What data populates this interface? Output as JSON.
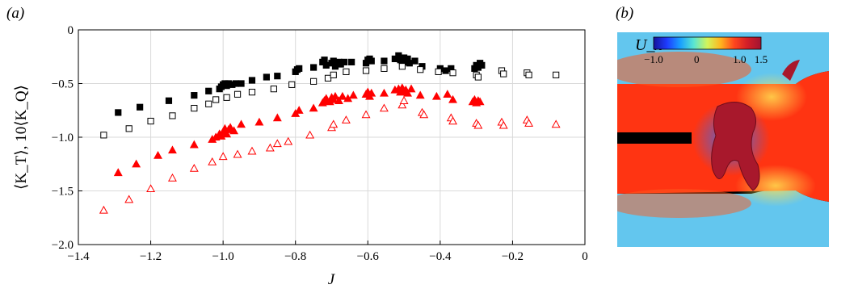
{
  "panels": {
    "a": "(a)",
    "b": "(b)"
  },
  "chart_data": {
    "type": "scatter",
    "xlabel": "J",
    "ylabel": "⟨K_T⟩, 10⟨K_Q⟩",
    "xlim": [
      -1.4,
      0
    ],
    "ylim": [
      -2.0,
      0
    ],
    "xticks": [
      -1.4,
      -1.2,
      -1.0,
      -0.8,
      -0.6,
      -0.4,
      -0.2,
      0
    ],
    "yticks": [
      0,
      -0.5,
      -1.0,
      -1.5,
      -2.0
    ],
    "xtick_labels": [
      "−1.4",
      "−1.2",
      "−1.0",
      "−0.8",
      "−0.6",
      "−0.4",
      "−0.2",
      "0"
    ],
    "ytick_labels": [
      "0",
      "−0.5",
      "−1.0",
      "−1.5",
      "−2.0"
    ],
    "grid": true,
    "series": [
      {
        "marker": "square-filled",
        "color": "#000000",
        "points": [
          [
            -1.29,
            -0.77
          ],
          [
            -1.23,
            -0.72
          ],
          [
            -1.15,
            -0.66
          ],
          [
            -1.08,
            -0.61
          ],
          [
            -1.04,
            -0.57
          ],
          [
            -1.01,
            -0.55
          ],
          [
            -1.005,
            -0.53
          ],
          [
            -1.0,
            -0.51
          ],
          [
            -0.995,
            -0.5
          ],
          [
            -0.99,
            -0.52
          ],
          [
            -0.985,
            -0.5
          ],
          [
            -0.975,
            -0.51
          ],
          [
            -0.965,
            -0.5
          ],
          [
            -0.95,
            -0.5
          ],
          [
            -0.92,
            -0.47
          ],
          [
            -0.88,
            -0.44
          ],
          [
            -0.85,
            -0.43
          ],
          [
            -0.8,
            -0.39
          ],
          [
            -0.795,
            -0.37
          ],
          [
            -0.79,
            -0.36
          ],
          [
            -0.75,
            -0.35
          ],
          [
            -0.725,
            -0.3
          ],
          [
            -0.72,
            -0.28
          ],
          [
            -0.715,
            -0.33
          ],
          [
            -0.7,
            -0.31
          ],
          [
            -0.695,
            -0.29
          ],
          [
            -0.69,
            -0.34
          ],
          [
            -0.68,
            -0.3
          ],
          [
            -0.675,
            -0.32
          ],
          [
            -0.665,
            -0.3
          ],
          [
            -0.645,
            -0.3
          ],
          [
            -0.605,
            -0.31
          ],
          [
            -0.6,
            -0.28
          ],
          [
            -0.595,
            -0.27
          ],
          [
            -0.59,
            -0.29
          ],
          [
            -0.555,
            -0.29
          ],
          [
            -0.525,
            -0.27
          ],
          [
            -0.515,
            -0.24
          ],
          [
            -0.51,
            -0.28
          ],
          [
            -0.505,
            -0.29
          ],
          [
            -0.5,
            -0.26
          ],
          [
            -0.495,
            -0.3
          ],
          [
            -0.49,
            -0.27
          ],
          [
            -0.485,
            -0.31
          ],
          [
            -0.47,
            -0.29
          ],
          [
            -0.45,
            -0.34
          ],
          [
            -0.4,
            -0.36
          ],
          [
            -0.385,
            -0.38
          ],
          [
            -0.37,
            -0.36
          ],
          [
            -0.305,
            -0.36
          ],
          [
            -0.3,
            -0.33
          ],
          [
            -0.295,
            -0.35
          ],
          [
            -0.29,
            -0.31
          ],
          [
            -0.285,
            -0.33
          ]
        ]
      },
      {
        "marker": "square-open",
        "color": "#000000",
        "points": [
          [
            -1.33,
            -0.98
          ],
          [
            -1.26,
            -0.92
          ],
          [
            -1.2,
            -0.85
          ],
          [
            -1.14,
            -0.8
          ],
          [
            -1.08,
            -0.73
          ],
          [
            -1.04,
            -0.69
          ],
          [
            -1.02,
            -0.65
          ],
          [
            -0.99,
            -0.63
          ],
          [
            -0.96,
            -0.6
          ],
          [
            -0.92,
            -0.58
          ],
          [
            -0.86,
            -0.55
          ],
          [
            -0.81,
            -0.51
          ],
          [
            -0.75,
            -0.48
          ],
          [
            -0.71,
            -0.45
          ],
          [
            -0.695,
            -0.42
          ],
          [
            -0.66,
            -0.39
          ],
          [
            -0.605,
            -0.38
          ],
          [
            -0.555,
            -0.36
          ],
          [
            -0.505,
            -0.34
          ],
          [
            -0.455,
            -0.37
          ],
          [
            -0.405,
            -0.39
          ],
          [
            -0.365,
            -0.4
          ],
          [
            -0.3,
            -0.42
          ],
          [
            -0.295,
            -0.44
          ],
          [
            -0.23,
            -0.38
          ],
          [
            -0.225,
            -0.41
          ],
          [
            -0.16,
            -0.4
          ],
          [
            -0.155,
            -0.42
          ],
          [
            -0.08,
            -0.42
          ]
        ]
      },
      {
        "marker": "triangle-filled",
        "color": "#ff0000",
        "points": [
          [
            -1.29,
            -1.33
          ],
          [
            -1.24,
            -1.25
          ],
          [
            -1.18,
            -1.17
          ],
          [
            -1.14,
            -1.12
          ],
          [
            -1.08,
            -1.07
          ],
          [
            -1.03,
            -1.02
          ],
          [
            -1.02,
            -1.0
          ],
          [
            -1.01,
            -0.97
          ],
          [
            -1.005,
            -0.99
          ],
          [
            -1.0,
            -0.95
          ],
          [
            -0.995,
            -0.92
          ],
          [
            -0.99,
            -0.97
          ],
          [
            -0.985,
            -0.93
          ],
          [
            -0.98,
            -0.91
          ],
          [
            -0.97,
            -0.94
          ],
          [
            -0.95,
            -0.88
          ],
          [
            -0.9,
            -0.86
          ],
          [
            -0.85,
            -0.82
          ],
          [
            -0.8,
            -0.78
          ],
          [
            -0.79,
            -0.75
          ],
          [
            -0.75,
            -0.73
          ],
          [
            -0.725,
            -0.68
          ],
          [
            -0.72,
            -0.66
          ],
          [
            -0.715,
            -0.64
          ],
          [
            -0.705,
            -0.67
          ],
          [
            -0.7,
            -0.63
          ],
          [
            -0.695,
            -0.65
          ],
          [
            -0.69,
            -0.62
          ],
          [
            -0.68,
            -0.66
          ],
          [
            -0.67,
            -0.62
          ],
          [
            -0.655,
            -0.64
          ],
          [
            -0.64,
            -0.61
          ],
          [
            -0.605,
            -0.6
          ],
          [
            -0.6,
            -0.58
          ],
          [
            -0.595,
            -0.62
          ],
          [
            -0.59,
            -0.59
          ],
          [
            -0.555,
            -0.59
          ],
          [
            -0.525,
            -0.56
          ],
          [
            -0.515,
            -0.55
          ],
          [
            -0.51,
            -0.58
          ],
          [
            -0.505,
            -0.54
          ],
          [
            -0.5,
            -0.57
          ],
          [
            -0.495,
            -0.56
          ],
          [
            -0.49,
            -0.59
          ],
          [
            -0.48,
            -0.55
          ],
          [
            -0.455,
            -0.61
          ],
          [
            -0.41,
            -0.62
          ],
          [
            -0.38,
            -0.6
          ],
          [
            -0.365,
            -0.65
          ],
          [
            -0.31,
            -0.67
          ],
          [
            -0.305,
            -0.65
          ],
          [
            -0.3,
            -0.68
          ],
          [
            -0.295,
            -0.66
          ],
          [
            -0.29,
            -0.67
          ]
        ]
      },
      {
        "marker": "triangle-open",
        "color": "#ff0000",
        "points": [
          [
            -1.33,
            -1.68
          ],
          [
            -1.26,
            -1.58
          ],
          [
            -1.2,
            -1.48
          ],
          [
            -1.14,
            -1.38
          ],
          [
            -1.08,
            -1.29
          ],
          [
            -1.03,
            -1.23
          ],
          [
            -1.0,
            -1.18
          ],
          [
            -0.96,
            -1.16
          ],
          [
            -0.92,
            -1.13
          ],
          [
            -0.87,
            -1.1
          ],
          [
            -0.85,
            -1.06
          ],
          [
            -0.82,
            -1.04
          ],
          [
            -0.76,
            -0.98
          ],
          [
            -0.7,
            -0.91
          ],
          [
            -0.695,
            -0.88
          ],
          [
            -0.66,
            -0.84
          ],
          [
            -0.605,
            -0.79
          ],
          [
            -0.555,
            -0.73
          ],
          [
            -0.505,
            -0.7
          ],
          [
            -0.5,
            -0.66
          ],
          [
            -0.45,
            -0.77
          ],
          [
            -0.445,
            -0.79
          ],
          [
            -0.37,
            -0.82
          ],
          [
            -0.365,
            -0.85
          ],
          [
            -0.3,
            -0.87
          ],
          [
            -0.295,
            -0.89
          ],
          [
            -0.23,
            -0.86
          ],
          [
            -0.225,
            -0.89
          ],
          [
            -0.16,
            -0.84
          ],
          [
            -0.155,
            -0.87
          ],
          [
            -0.08,
            -0.88
          ]
        ]
      }
    ]
  },
  "colorbar": {
    "label": "U_x",
    "ticks": [
      "−1.0",
      "0",
      "1.0",
      "1.5"
    ],
    "colors": [
      "#14149b",
      "#1e3cff",
      "#19a0ff",
      "#5ae6d2",
      "#d2f55a",
      "#ffb41e",
      "#ff461e",
      "#d21e28",
      "#a01432"
    ]
  },
  "flow_image": {
    "colors": {
      "background": "#000000",
      "outer": "#62c7ee",
      "jet": "#ff2a10",
      "vortex": "#a9182c",
      "wake": "#3358e8"
    }
  }
}
